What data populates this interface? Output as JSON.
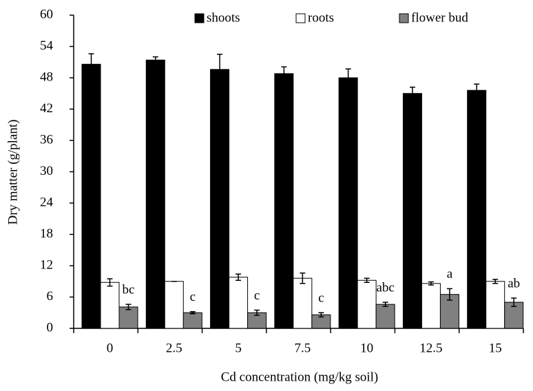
{
  "chart_data": {
    "type": "bar",
    "x_label": "Cd concentration (mg/kg soil)",
    "y_label": "Dry matter (g/plant)",
    "categories": [
      "0",
      "2.5",
      "5",
      "7.5",
      "10",
      "12.5",
      "15"
    ],
    "series": [
      {
        "name": "shoots",
        "color": "#000000",
        "values": [
          50.6,
          51.4,
          49.6,
          48.8,
          48.0,
          45.0,
          45.6
        ],
        "errors": [
          2.0,
          0.6,
          2.9,
          1.3,
          1.7,
          1.2,
          1.2
        ]
      },
      {
        "name": "roots",
        "color": "#ffffff",
        "values": [
          8.8,
          9.0,
          9.8,
          9.6,
          9.2,
          8.6,
          9.0
        ],
        "errors": [
          0.7,
          0,
          0.6,
          1.0,
          0.4,
          0.3,
          0.4
        ]
      },
      {
        "name": "flower bud",
        "color": "#808080",
        "values": [
          4.1,
          3.0,
          3.0,
          2.6,
          4.6,
          6.5,
          5.0
        ],
        "errors": [
          0.5,
          0.2,
          0.5,
          0.4,
          0.4,
          1.1,
          0.8
        ]
      }
    ],
    "annotations": [
      "bc",
      "c",
      "c",
      "c",
      "abc",
      "a",
      "ab"
    ],
    "ylim": [
      0,
      60
    ],
    "yticks": [
      0,
      6,
      12,
      18,
      24,
      30,
      36,
      42,
      48,
      54,
      60
    ],
    "grid": false
  }
}
